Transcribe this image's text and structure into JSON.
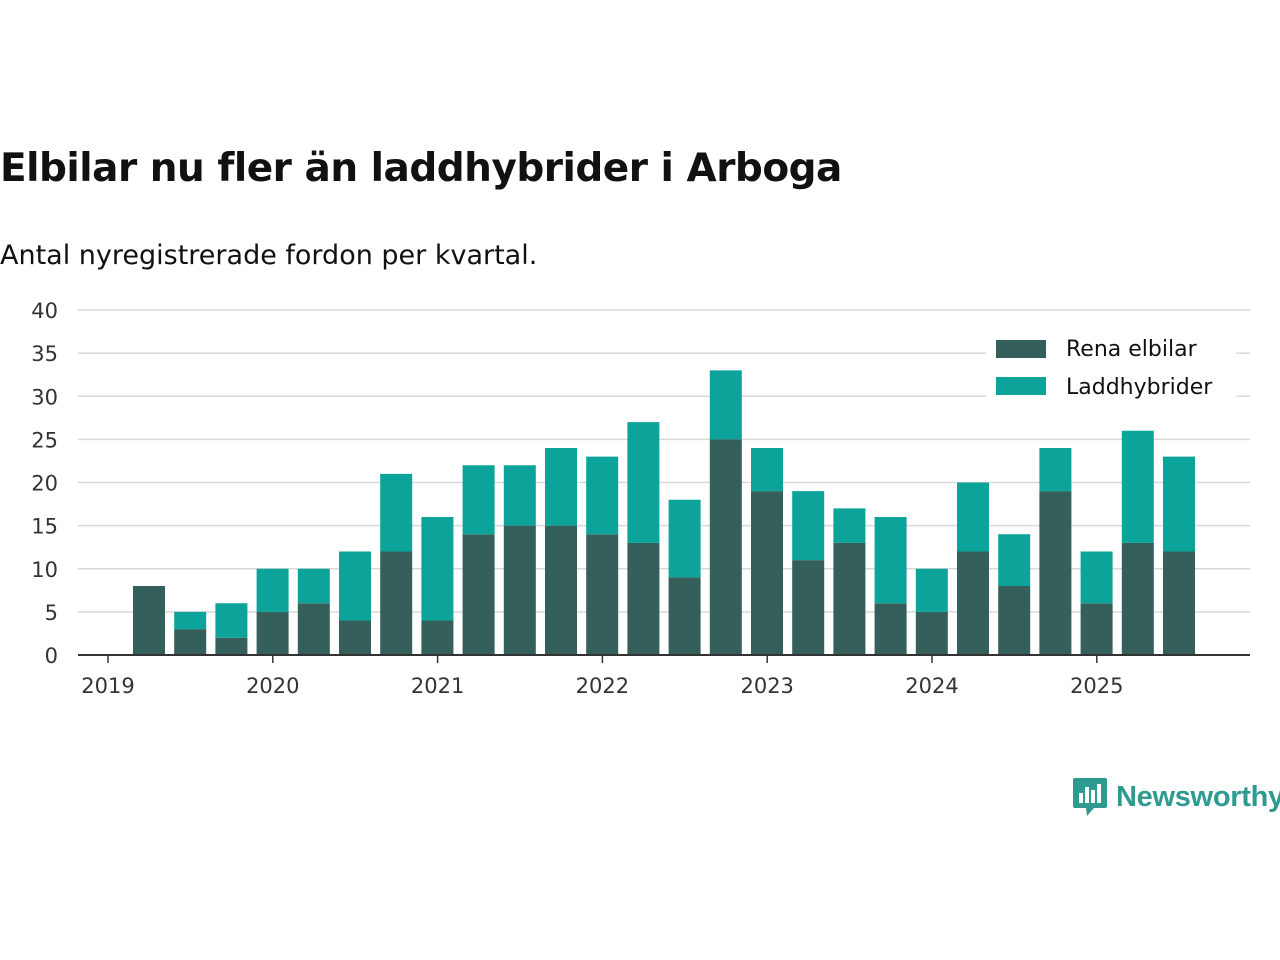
{
  "title": "Elbilar nu fler än laddhybrider i Arboga",
  "subtitle": "Antal nyregistrerade fordon per kvartal.",
  "brand": "Newsworthy",
  "colors": {
    "elbilar": "#345f5a",
    "laddhybrider": "#0ca49a",
    "grid": "#d9d9d9",
    "axis": "#333333",
    "brand": "#2f9a8f"
  },
  "chart_data": {
    "type": "bar",
    "stacked": true,
    "x": [
      "2019 Q2",
      "2019 Q3",
      "2019 Q4",
      "2020 Q1",
      "2020 Q2",
      "2020 Q3",
      "2020 Q4",
      "2021 Q1",
      "2021 Q2",
      "2021 Q3",
      "2021 Q4",
      "2022 Q1",
      "2022 Q2",
      "2022 Q3",
      "2022 Q4",
      "2023 Q1",
      "2023 Q2",
      "2023 Q3",
      "2023 Q4",
      "2024 Q1",
      "2024 Q2",
      "2024 Q3",
      "2024 Q4",
      "2025 Q1",
      "2025 Q2",
      "2025 Q3"
    ],
    "series": [
      {
        "name": "Rena elbilar",
        "values": [
          8,
          3,
          2,
          5,
          6,
          4,
          12,
          4,
          14,
          15,
          15,
          14,
          13,
          9,
          25,
          19,
          11,
          13,
          6,
          5,
          12,
          8,
          19,
          6,
          13,
          12
        ]
      },
      {
        "name": "Laddhybrider",
        "values": [
          0,
          2,
          4,
          5,
          4,
          8,
          9,
          12,
          8,
          7,
          9,
          9,
          14,
          9,
          8,
          5,
          8,
          4,
          10,
          5,
          8,
          6,
          5,
          6,
          13,
          11
        ]
      }
    ],
    "x_tick_labels": [
      "2019",
      "2020",
      "2021",
      "2022",
      "2023",
      "2024",
      "2025"
    ],
    "y_ticks": [
      0,
      5,
      10,
      15,
      20,
      25,
      30,
      35,
      40
    ],
    "ylim": [
      0,
      40
    ],
    "legend": [
      "Rena elbilar",
      "Laddhybrider"
    ],
    "legend_position": "top-right"
  }
}
